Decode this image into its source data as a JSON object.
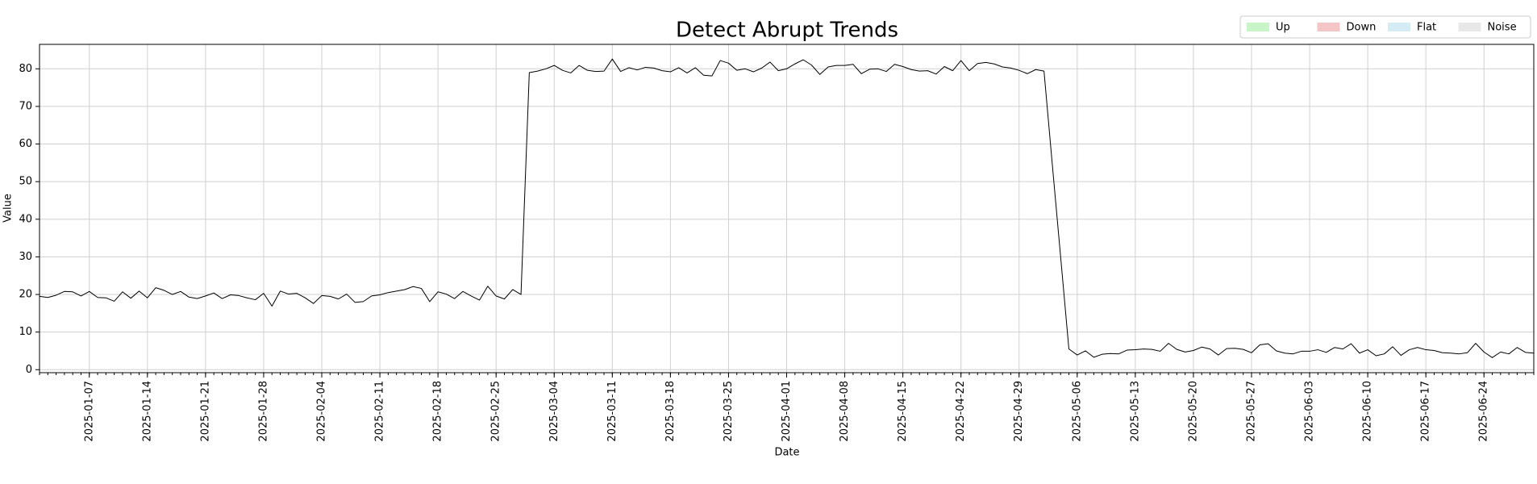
{
  "chart_data": {
    "type": "line",
    "title": "Detect Abrupt Trends",
    "xlabel": "Date",
    "ylabel": "Value",
    "color": "#000000",
    "grid": true,
    "legend_loc": "upper right",
    "legend": [
      {
        "label": "Up",
        "color": "#c8f5c8"
      },
      {
        "label": "Down",
        "color": "#f5c6c6"
      },
      {
        "label": "Flat",
        "color": "#d6ecf5"
      },
      {
        "label": "Noise",
        "color": "#e8e8e8"
      }
    ],
    "xlim": [
      "2025-01-01",
      "2025-06-30"
    ],
    "xticks": [
      "2025-01-07",
      "2025-01-14",
      "2025-01-21",
      "2025-01-28",
      "2025-02-04",
      "2025-02-11",
      "2025-02-18",
      "2025-02-25",
      "2025-03-04",
      "2025-03-11",
      "2025-03-18",
      "2025-03-25",
      "2025-04-01",
      "2025-04-08",
      "2025-04-15",
      "2025-04-22",
      "2025-04-29",
      "2025-05-06",
      "2025-05-13",
      "2025-05-20",
      "2025-05-27",
      "2025-06-03",
      "2025-06-10",
      "2025-06-17",
      "2025-06-24"
    ],
    "ylim": [
      -0.8,
      86.5
    ],
    "yticks": [
      0,
      10,
      20,
      30,
      40,
      50,
      60,
      70,
      80
    ],
    "x": [
      "2025-01-01",
      "2025-01-02",
      "2025-01-03",
      "2025-01-04",
      "2025-01-05",
      "2025-01-06",
      "2025-01-07",
      "2025-01-08",
      "2025-01-09",
      "2025-01-10",
      "2025-01-11",
      "2025-01-12",
      "2025-01-13",
      "2025-01-14",
      "2025-01-15",
      "2025-01-16",
      "2025-01-17",
      "2025-01-18",
      "2025-01-19",
      "2025-01-20",
      "2025-01-21",
      "2025-01-22",
      "2025-01-23",
      "2025-01-24",
      "2025-01-25",
      "2025-01-26",
      "2025-01-27",
      "2025-01-28",
      "2025-01-29",
      "2025-01-30",
      "2025-01-31",
      "2025-02-01",
      "2025-02-02",
      "2025-02-03",
      "2025-02-04",
      "2025-02-05",
      "2025-02-06",
      "2025-02-07",
      "2025-02-08",
      "2025-02-09",
      "2025-02-10",
      "2025-02-11",
      "2025-02-12",
      "2025-02-13",
      "2025-02-14",
      "2025-02-15",
      "2025-02-16",
      "2025-02-17",
      "2025-02-18",
      "2025-02-19",
      "2025-02-20",
      "2025-02-21",
      "2025-02-22",
      "2025-02-23",
      "2025-02-24",
      "2025-02-25",
      "2025-02-26",
      "2025-02-27",
      "2025-02-28",
      "2025-03-01",
      "2025-03-02",
      "2025-03-03",
      "2025-03-04",
      "2025-03-05",
      "2025-03-06",
      "2025-03-07",
      "2025-03-08",
      "2025-03-09",
      "2025-03-10",
      "2025-03-11",
      "2025-03-12",
      "2025-03-13",
      "2025-03-14",
      "2025-03-15",
      "2025-03-16",
      "2025-03-17",
      "2025-03-18",
      "2025-03-19",
      "2025-03-20",
      "2025-03-21",
      "2025-03-22",
      "2025-03-23",
      "2025-03-24",
      "2025-03-25",
      "2025-03-26",
      "2025-03-27",
      "2025-03-28",
      "2025-03-29",
      "2025-03-30",
      "2025-03-31",
      "2025-04-01",
      "2025-04-02",
      "2025-04-03",
      "2025-04-04",
      "2025-04-05",
      "2025-04-06",
      "2025-04-07",
      "2025-04-08",
      "2025-04-09",
      "2025-04-10",
      "2025-04-11",
      "2025-04-12",
      "2025-04-13",
      "2025-04-14",
      "2025-04-15",
      "2025-04-16",
      "2025-04-17",
      "2025-04-18",
      "2025-04-19",
      "2025-04-20",
      "2025-04-21",
      "2025-04-22",
      "2025-04-23",
      "2025-04-24",
      "2025-04-25",
      "2025-04-26",
      "2025-04-27",
      "2025-04-28",
      "2025-04-29",
      "2025-04-30",
      "2025-05-01",
      "2025-05-02",
      "2025-05-03",
      "2025-05-04",
      "2025-05-05",
      "2025-05-06",
      "2025-05-07",
      "2025-05-08",
      "2025-05-09",
      "2025-05-10",
      "2025-05-11",
      "2025-05-12",
      "2025-05-13",
      "2025-05-14",
      "2025-05-15",
      "2025-05-16",
      "2025-05-17",
      "2025-05-18",
      "2025-05-19",
      "2025-05-20",
      "2025-05-21",
      "2025-05-22",
      "2025-05-23",
      "2025-05-24",
      "2025-05-25",
      "2025-05-26",
      "2025-05-27",
      "2025-05-28",
      "2025-05-29",
      "2025-05-30",
      "2025-05-31",
      "2025-06-01",
      "2025-06-02",
      "2025-06-03",
      "2025-06-04",
      "2025-06-05",
      "2025-06-06",
      "2025-06-07",
      "2025-06-08",
      "2025-06-09",
      "2025-06-10",
      "2025-06-11",
      "2025-06-12",
      "2025-06-13",
      "2025-06-14",
      "2025-06-15",
      "2025-06-16",
      "2025-06-17",
      "2025-06-18",
      "2025-06-19",
      "2025-06-20",
      "2025-06-21",
      "2025-06-22",
      "2025-06-23",
      "2025-06-24",
      "2025-06-25",
      "2025-06-26",
      "2025-06-27",
      "2025-06-28",
      "2025-06-29",
      "2025-06-30"
    ],
    "values": [
      19.5,
      19.2,
      19.8,
      20.8,
      20.7,
      19.6,
      20.8,
      19.2,
      19.1,
      18.2,
      20.7,
      19.0,
      20.9,
      19.1,
      21.8,
      21.1,
      20.0,
      20.8,
      19.3,
      18.9,
      19.6,
      20.4,
      18.9,
      19.9,
      19.7,
      19.1,
      18.6,
      20.3,
      16.9,
      20.9,
      20.1,
      20.3,
      19.1,
      17.6,
      19.7,
      19.5,
      18.8,
      20.1,
      17.9,
      18.1,
      19.6,
      19.9,
      20.5,
      20.9,
      21.3,
      22.1,
      21.6,
      18.1,
      20.7,
      20.1,
      18.9,
      20.8,
      19.6,
      18.5,
      22.2,
      19.6,
      18.8,
      21.3,
      20.0,
      79.0,
      79.4,
      80.0,
      80.9,
      79.6,
      78.9,
      80.9,
      79.6,
      79.3,
      79.4,
      82.6,
      79.3,
      80.3,
      79.7,
      80.4,
      80.2,
      79.5,
      79.2,
      80.3,
      78.9,
      80.3,
      78.3,
      78.1,
      82.2,
      81.5,
      79.6,
      80.0,
      79.2,
      80.2,
      81.8,
      79.5,
      80.0,
      81.3,
      82.4,
      81.0,
      78.5,
      80.5,
      80.9,
      80.9,
      81.2,
      78.7,
      79.9,
      80.0,
      79.3,
      81.2,
      80.6,
      79.8,
      79.4,
      79.5,
      78.6,
      80.6,
      79.5,
      82.2,
      79.5,
      81.4,
      81.7,
      81.3,
      80.5,
      80.2,
      79.6,
      78.7,
      79.8,
      79.4,
      54.6,
      30.1,
      5.5,
      3.9,
      5.0,
      3.3,
      4.1,
      4.3,
      4.2,
      5.2,
      5.3,
      5.5,
      5.4,
      4.9,
      7.0,
      5.4,
      4.7,
      5.1,
      6.0,
      5.5,
      3.9,
      5.6,
      5.7,
      5.4,
      4.5,
      6.6,
      6.9,
      5.0,
      4.4,
      4.2,
      4.9,
      4.9,
      5.3,
      4.6,
      5.9,
      5.5,
      6.9,
      4.4,
      5.3,
      3.7,
      4.2,
      6.1,
      3.8,
      5.3,
      5.9,
      5.3,
      5.1,
      4.5,
      4.4,
      4.2,
      4.5,
      7.0,
      4.7,
      3.2,
      4.7,
      4.2,
      5.9,
      4.6,
      4.4
    ]
  }
}
